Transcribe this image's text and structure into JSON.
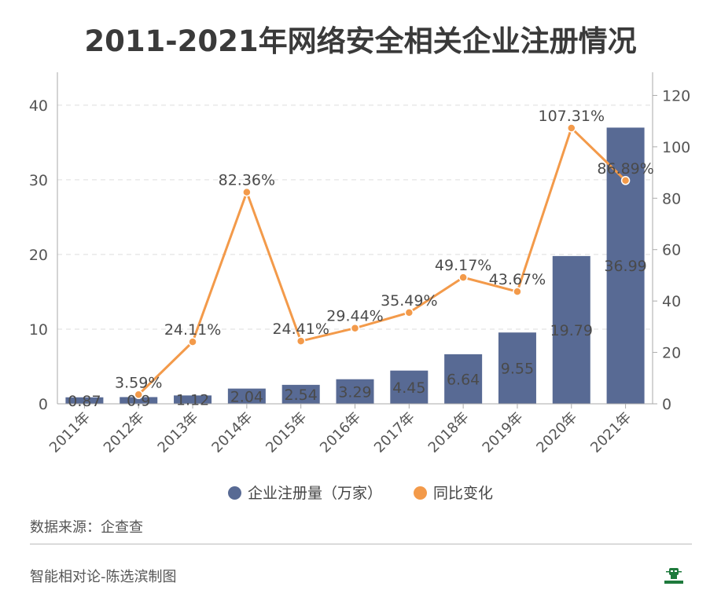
{
  "chart_data": {
    "type": "bar+line",
    "title": "2011-2021年网络安全相关企业注册情况",
    "categories": [
      "2011年",
      "2012年",
      "2013年",
      "2014年",
      "2015年",
      "2016年",
      "2017年",
      "2018年",
      "2019年",
      "2020年",
      "2021年"
    ],
    "series": [
      {
        "name": "企业注册量（万家）",
        "type": "bar",
        "axis": "left",
        "color": "#586a94",
        "values": [
          0.87,
          0.9,
          1.12,
          2.04,
          2.54,
          3.29,
          4.45,
          6.64,
          9.55,
          19.79,
          36.99
        ],
        "labels": [
          "0.87",
          "0.9",
          "1.12",
          "2.04",
          "2.54",
          "3.29",
          "4.45",
          "6.64",
          "9.55",
          "19.79",
          "36.99"
        ]
      },
      {
        "name": "同比变化",
        "type": "line",
        "axis": "right",
        "color": "#f39a4a",
        "values": [
          null,
          3.59,
          24.11,
          82.36,
          24.41,
          29.44,
          35.49,
          49.17,
          43.67,
          107.31,
          86.89
        ],
        "labels": [
          "",
          "3.59%",
          "24.11%",
          "82.36%",
          "24.41%",
          "29.44%",
          "35.49%",
          "49.17%",
          "43.67%",
          "107.31%",
          "86.89%"
        ]
      }
    ],
    "y_left": {
      "ylim": [
        0,
        44.4
      ],
      "ticks": [
        "0",
        "10",
        "20",
        "30",
        "40"
      ]
    },
    "y_right": {
      "ylim": [
        0,
        129
      ],
      "ticks": [
        "0",
        "20",
        "40",
        "60",
        "80",
        "100",
        "120"
      ]
    },
    "grid": true,
    "legend": "bottom"
  },
  "footer": {
    "source": "数据来源：企查查",
    "author": "智能相对论-陈选滨制图",
    "logo_text": "智能相对论"
  }
}
